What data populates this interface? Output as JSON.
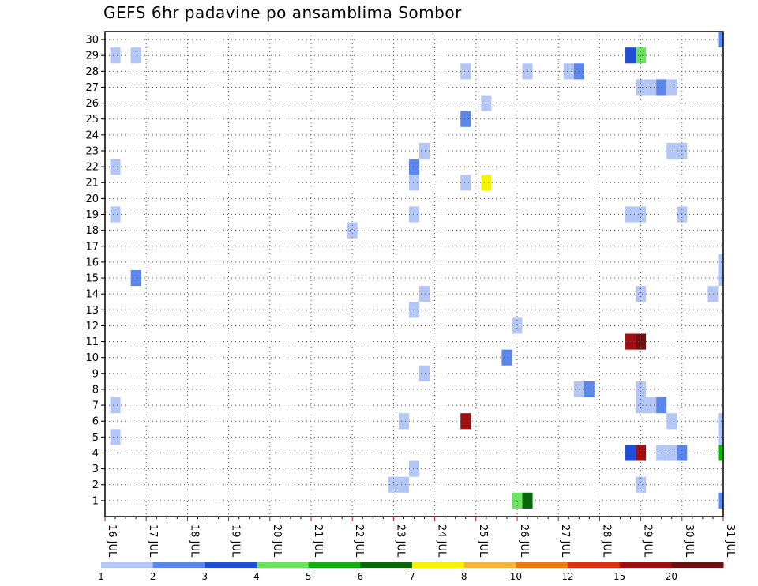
{
  "chart_data": {
    "type": "heatmap",
    "title": "GEFS 6hr padavine po ansamblima Sombor",
    "xlabel": "",
    "ylabel": "",
    "x_ticks": [
      "16 JUL",
      "17 JUL",
      "18 JUL",
      "19 JUL",
      "20 JUL",
      "21 JUL",
      "22 JUL",
      "23 JUL",
      "24 JUL",
      "25 JUL",
      "26 JUL",
      "27 JUL",
      "28 JUL",
      "29 JUL",
      "30 JUL",
      "31 JUL"
    ],
    "y_ticks": [
      "1",
      "2",
      "3",
      "4",
      "5",
      "6",
      "7",
      "8",
      "9",
      "10",
      "11",
      "12",
      "13",
      "14",
      "15",
      "16",
      "17",
      "18",
      "19",
      "20",
      "21",
      "22",
      "23",
      "24",
      "25",
      "26",
      "27",
      "28",
      "29",
      "30"
    ],
    "y_range": [
      0,
      30.5
    ],
    "grid": true,
    "colorbar": {
      "labels": [
        "1",
        "2",
        "3",
        "4",
        "5",
        "6",
        "7",
        "8",
        "10",
        "12",
        "15",
        "20"
      ],
      "colors": [
        "#b4c6f5",
        "#5b86ec",
        "#1f4fd9",
        "#6ae45c",
        "#10b010",
        "#086708",
        "#f4f400",
        "#f6b43c",
        "#f07a10",
        "#e03010",
        "#a01010",
        "#701010"
      ]
    },
    "cells_note_units": "x in days since 16 JUL 00Z (6-hour steps of 0.25), y = ensemble member, level = colorbar bin index",
    "cells": [
      [
        0.25,
        29,
        0
      ],
      [
        0.75,
        29,
        0
      ],
      [
        12.75,
        29,
        2
      ],
      [
        13.0,
        29,
        3
      ],
      [
        15.0,
        30,
        1
      ],
      [
        8.75,
        28,
        0
      ],
      [
        10.25,
        28,
        0
      ],
      [
        11.25,
        28,
        0
      ],
      [
        11.5,
        28,
        1
      ],
      [
        13.0,
        27,
        0
      ],
      [
        13.25,
        27,
        0
      ],
      [
        13.5,
        27,
        1
      ],
      [
        13.75,
        27,
        0
      ],
      [
        9.25,
        26,
        0
      ],
      [
        8.75,
        25,
        1
      ],
      [
        7.75,
        23,
        0
      ],
      [
        13.75,
        23,
        0
      ],
      [
        14.0,
        23,
        0
      ],
      [
        0.25,
        22,
        0
      ],
      [
        7.5,
        22,
        1
      ],
      [
        7.5,
        21,
        0
      ],
      [
        8.75,
        21,
        0
      ],
      [
        9.25,
        21,
        6
      ],
      [
        0.25,
        19,
        0
      ],
      [
        7.5,
        19,
        0
      ],
      [
        12.75,
        19,
        0
      ],
      [
        13.0,
        19,
        0
      ],
      [
        14.0,
        19,
        0
      ],
      [
        6.0,
        18,
        0
      ],
      [
        15.0,
        16,
        0
      ],
      [
        0.75,
        15,
        1
      ],
      [
        15.0,
        15,
        0
      ],
      [
        7.75,
        14,
        0
      ],
      [
        13.0,
        14,
        0
      ],
      [
        14.75,
        14,
        0
      ],
      [
        7.5,
        13,
        0
      ],
      [
        10.0,
        12,
        0
      ],
      [
        12.75,
        11,
        10
      ],
      [
        13.0,
        11,
        11
      ],
      [
        9.75,
        10,
        1
      ],
      [
        7.75,
        9,
        0
      ],
      [
        11.5,
        8,
        0
      ],
      [
        11.75,
        8,
        1
      ],
      [
        13.0,
        8,
        0
      ],
      [
        0.25,
        7,
        0
      ],
      [
        13.0,
        7,
        0
      ],
      [
        13.25,
        7,
        0
      ],
      [
        13.5,
        7,
        1
      ],
      [
        7.25,
        6,
        0
      ],
      [
        8.75,
        6,
        10
      ],
      [
        13.75,
        6,
        0
      ],
      [
        15.0,
        6,
        0
      ],
      [
        0.25,
        5,
        0
      ],
      [
        15.0,
        5,
        0
      ],
      [
        12.75,
        4,
        2
      ],
      [
        13.0,
        4,
        10
      ],
      [
        13.5,
        4,
        0
      ],
      [
        13.75,
        4,
        0
      ],
      [
        14.0,
        4,
        1
      ],
      [
        15.0,
        4,
        4
      ],
      [
        7.5,
        3,
        0
      ],
      [
        7.0,
        2,
        0
      ],
      [
        7.25,
        2,
        0
      ],
      [
        13.0,
        2,
        0
      ],
      [
        10.0,
        1,
        3
      ],
      [
        10.25,
        1,
        5
      ],
      [
        15.0,
        1,
        1
      ]
    ]
  }
}
